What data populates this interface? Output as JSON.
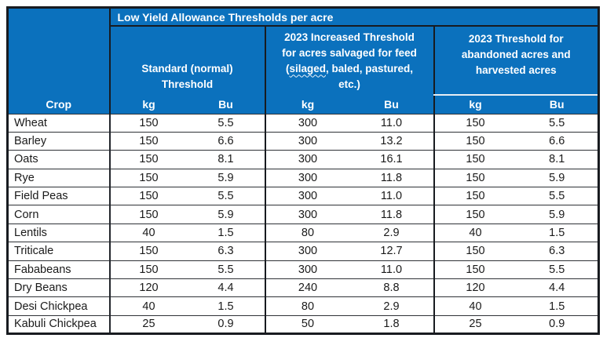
{
  "colors": {
    "header_bg": "#0b71bd",
    "header_text": "#ffffff",
    "outer_border": "#181b20",
    "row_border": "#2e3136",
    "white_divider": "#e8eef4"
  },
  "table": {
    "title": "Low Yield Allowance Thresholds per acre",
    "crop_header": "Crop",
    "unit_headers": [
      "kg",
      "Bu",
      "kg",
      "Bu",
      "kg",
      "Bu"
    ],
    "groups": {
      "standard": {
        "line1": "Standard (normal)",
        "line2": "Threshold"
      },
      "increased": {
        "line1": "2023 Increased Threshold",
        "line2": "for acres salvaged for feed",
        "line3_open": "(",
        "line3_squiggle_word": "silaged",
        "line3_rest": ", baled, pastured,",
        "line4": "etc.)"
      },
      "abandoned": {
        "line1": "2023 Threshold for",
        "line2": "abandoned acres and",
        "line3": "harvested acres"
      }
    },
    "rows": [
      {
        "crop": "Wheat",
        "values": [
          "150",
          "5.5",
          "300",
          "11.0",
          "150",
          "5.5"
        ]
      },
      {
        "crop": "Barley",
        "values": [
          "150",
          "6.6",
          "300",
          "13.2",
          "150",
          "6.6"
        ]
      },
      {
        "crop": "Oats",
        "values": [
          "150",
          "8.1",
          "300",
          "16.1",
          "150",
          "8.1"
        ]
      },
      {
        "crop": "Rye",
        "values": [
          "150",
          "5.9",
          "300",
          "11.8",
          "150",
          "5.9"
        ]
      },
      {
        "crop": "Field Peas",
        "values": [
          "150",
          "5.5",
          "300",
          "11.0",
          "150",
          "5.5"
        ]
      },
      {
        "crop": "Corn",
        "values": [
          "150",
          "5.9",
          "300",
          "11.8",
          "150",
          "5.9"
        ]
      },
      {
        "crop": "Lentils",
        "values": [
          "40",
          "1.5",
          "80",
          "2.9",
          "40",
          "1.5"
        ]
      },
      {
        "crop": "Triticale",
        "values": [
          "150",
          "6.3",
          "300",
          "12.7",
          "150",
          "6.3"
        ]
      },
      {
        "crop": "Fababeans",
        "values": [
          "150",
          "5.5",
          "300",
          "11.0",
          "150",
          "5.5"
        ]
      },
      {
        "crop": "Dry Beans",
        "values": [
          "120",
          "4.4",
          "240",
          "8.8",
          "120",
          "4.4"
        ]
      },
      {
        "crop": "Desi Chickpea",
        "values": [
          "40",
          "1.5",
          "80",
          "2.9",
          "40",
          "1.5"
        ]
      },
      {
        "crop": "Kabuli Chickpea",
        "values": [
          "25",
          "0.9",
          "50",
          "1.8",
          "25",
          "0.9"
        ]
      }
    ]
  }
}
